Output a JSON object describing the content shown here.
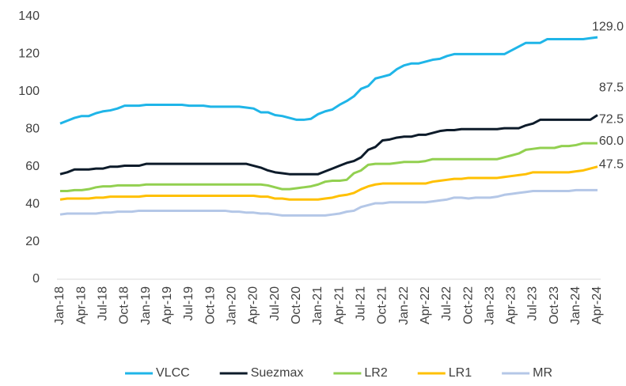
{
  "chart_data": {
    "type": "line",
    "categories": [
      "Jan-18",
      null,
      null,
      "Apr-18",
      null,
      null,
      "Jul-18",
      null,
      null,
      "Oct-18",
      null,
      null,
      "Jan-19",
      null,
      null,
      "Apr-19",
      null,
      null,
      "Jul-19",
      null,
      null,
      "Oct-19",
      null,
      null,
      "Jan-20",
      null,
      null,
      "Apr-20",
      null,
      null,
      "Jul-20",
      null,
      null,
      "Oct-20",
      null,
      null,
      "Jan-21",
      null,
      null,
      "Apr-21",
      null,
      null,
      "Jul-21",
      null,
      null,
      "Oct-21",
      null,
      null,
      "Jan-22",
      null,
      null,
      "Apr-22",
      null,
      null,
      "Jul-22",
      null,
      null,
      "Oct-22",
      null,
      null,
      "Jan-23",
      null,
      null,
      "Apr-23",
      null,
      null,
      "Jul-23",
      null,
      null,
      "Oct-23",
      null,
      null,
      "Jan-24",
      null,
      null,
      "Apr-24"
    ],
    "series": [
      {
        "name": "VLCC",
        "color": "#1fb5e8",
        "values": [
          83,
          84.5,
          86,
          87,
          87,
          88.5,
          89.5,
          90,
          91,
          92.5,
          92.5,
          92.5,
          93,
          93,
          93,
          93,
          93,
          93,
          92.5,
          92.5,
          92.5,
          92,
          92,
          92,
          92,
          92,
          91.5,
          91,
          89,
          89,
          87.5,
          87,
          86,
          85,
          85,
          85.5,
          88,
          89.5,
          90.5,
          93,
          95,
          97.5,
          101.5,
          103,
          107,
          108,
          109,
          112,
          114,
          115,
          115,
          116,
          117,
          117.5,
          119,
          120,
          120,
          120,
          120,
          120,
          120,
          120,
          120,
          122,
          124,
          126,
          126,
          126,
          128,
          128,
          128,
          128,
          128,
          128,
          128.5,
          129
        ],
        "value_labels": [
          null,
          null,
          null,
          null,
          null,
          null,
          null,
          null,
          null,
          null,
          null,
          null,
          null,
          null,
          null,
          null,
          null,
          null,
          null,
          null,
          null,
          null,
          null,
          null,
          null,
          null,
          null,
          null,
          null,
          null,
          null,
          null,
          null,
          null,
          null,
          null,
          null,
          null,
          null,
          null,
          null,
          null,
          null,
          null,
          null,
          null,
          null,
          null,
          null,
          null,
          null,
          null,
          null,
          null,
          null,
          null,
          null,
          null,
          null,
          null,
          null,
          null,
          null,
          null,
          null,
          null,
          null,
          null,
          null,
          null,
          null,
          null,
          null,
          null,
          null,
          "129.0"
        ]
      },
      {
        "name": "Suezmax",
        "color": "#0d1b2a",
        "values": [
          56,
          57,
          58.5,
          58.5,
          58.5,
          59,
          59,
          60,
          60,
          60.5,
          60.5,
          60.5,
          61.5,
          61.5,
          61.5,
          61.5,
          61.5,
          61.5,
          61.5,
          61.5,
          61.5,
          61.5,
          61.5,
          61.5,
          61.5,
          61.5,
          61.5,
          60.5,
          59.5,
          58,
          57,
          56.5,
          56,
          56,
          56,
          56,
          56,
          57.5,
          59,
          60.5,
          62,
          63,
          65,
          69,
          70.5,
          74,
          74.5,
          75.5,
          76,
          76,
          77,
          77,
          78,
          79,
          79.5,
          79.5,
          80,
          80,
          80,
          80,
          80,
          80,
          80.5,
          80.5,
          80.5,
          82,
          83,
          85,
          85,
          85,
          85,
          85,
          85,
          85,
          85,
          87.5
        ],
        "value_labels": [
          null,
          null,
          null,
          null,
          null,
          null,
          null,
          null,
          null,
          null,
          null,
          null,
          null,
          null,
          null,
          null,
          null,
          null,
          null,
          null,
          null,
          null,
          null,
          null,
          null,
          null,
          null,
          null,
          null,
          null,
          null,
          null,
          null,
          null,
          null,
          null,
          null,
          null,
          null,
          null,
          null,
          null,
          null,
          null,
          null,
          null,
          null,
          null,
          null,
          null,
          null,
          null,
          null,
          null,
          null,
          null,
          null,
          null,
          null,
          null,
          null,
          null,
          null,
          null,
          null,
          null,
          null,
          null,
          null,
          null,
          null,
          null,
          null,
          null,
          null,
          "87.5"
        ]
      },
      {
        "name": "LR2",
        "color": "#92d050",
        "values": [
          47,
          47,
          47.5,
          47.5,
          48,
          49,
          49.5,
          49.5,
          50,
          50,
          50,
          50,
          50.5,
          50.5,
          50.5,
          50.5,
          50.5,
          50.5,
          50.5,
          50.5,
          50.5,
          50.5,
          50.5,
          50.5,
          50.5,
          50.5,
          50.5,
          50.5,
          50.5,
          50,
          49,
          48,
          48,
          48.5,
          49,
          49.5,
          50.5,
          52,
          52.5,
          52.5,
          53,
          56.5,
          58,
          61,
          61.5,
          61.5,
          61.5,
          62,
          62.5,
          62.5,
          62.5,
          63,
          64,
          64,
          64,
          64,
          64,
          64,
          64,
          64,
          64,
          64,
          65,
          66,
          67,
          69,
          69.5,
          70,
          70,
          70,
          71,
          71,
          71.5,
          72.5,
          72.5,
          72.5
        ],
        "value_labels": [
          null,
          null,
          null,
          null,
          null,
          null,
          null,
          null,
          null,
          null,
          null,
          null,
          null,
          null,
          null,
          null,
          null,
          null,
          null,
          null,
          null,
          null,
          null,
          null,
          null,
          null,
          null,
          null,
          null,
          null,
          null,
          null,
          null,
          null,
          null,
          null,
          null,
          null,
          null,
          null,
          null,
          null,
          null,
          null,
          null,
          null,
          null,
          null,
          null,
          null,
          null,
          null,
          null,
          null,
          null,
          null,
          null,
          null,
          null,
          null,
          null,
          null,
          null,
          null,
          null,
          null,
          null,
          null,
          null,
          null,
          null,
          null,
          null,
          null,
          null,
          "72.5"
        ]
      },
      {
        "name": "LR1",
        "color": "#ffc000",
        "values": [
          42.5,
          43,
          43,
          43,
          43,
          43.5,
          43.5,
          44,
          44,
          44,
          44,
          44,
          44.5,
          44.5,
          44.5,
          44.5,
          44.5,
          44.5,
          44.5,
          44.5,
          44.5,
          44.5,
          44.5,
          44.5,
          44.5,
          44.5,
          44.5,
          44.5,
          44,
          44,
          43,
          43,
          42.5,
          42.5,
          42.5,
          42.5,
          42.5,
          43,
          43.5,
          44.5,
          45,
          46,
          48,
          49.5,
          50.5,
          51,
          51,
          51,
          51,
          51,
          51,
          51,
          52,
          52.5,
          53,
          53.5,
          53.5,
          54,
          54,
          54,
          54,
          54,
          54.5,
          55,
          55.5,
          56,
          57,
          57,
          57,
          57,
          57,
          57,
          57.5,
          58,
          59,
          60
        ],
        "value_labels": [
          null,
          null,
          null,
          null,
          null,
          null,
          null,
          null,
          null,
          null,
          null,
          null,
          null,
          null,
          null,
          null,
          null,
          null,
          null,
          null,
          null,
          null,
          null,
          null,
          null,
          null,
          null,
          null,
          null,
          null,
          null,
          null,
          null,
          null,
          null,
          null,
          null,
          null,
          null,
          null,
          null,
          null,
          null,
          null,
          null,
          null,
          null,
          null,
          null,
          null,
          null,
          null,
          null,
          null,
          null,
          null,
          null,
          null,
          null,
          null,
          null,
          null,
          null,
          null,
          null,
          null,
          null,
          null,
          null,
          null,
          null,
          null,
          null,
          null,
          null,
          "60.0"
        ]
      },
      {
        "name": "MR",
        "color": "#b4c7e7",
        "values": [
          34.5,
          35,
          35,
          35,
          35,
          35,
          35.5,
          35.5,
          36,
          36,
          36,
          36.5,
          36.5,
          36.5,
          36.5,
          36.5,
          36.5,
          36.5,
          36.5,
          36.5,
          36.5,
          36.5,
          36.5,
          36.5,
          36,
          36,
          35.5,
          35.5,
          35,
          35,
          34.5,
          34,
          34,
          34,
          34,
          34,
          34,
          34,
          34.5,
          35,
          36,
          36.5,
          38.5,
          39.5,
          40.5,
          40.5,
          41,
          41,
          41,
          41,
          41,
          41,
          41.5,
          42,
          42.5,
          43.5,
          43.5,
          43,
          43.5,
          43.5,
          43.5,
          44,
          45,
          45.5,
          46,
          46.5,
          47,
          47,
          47,
          47,
          47,
          47,
          47.5,
          47.5,
          47.5,
          47.5
        ],
        "value_labels": [
          null,
          null,
          null,
          null,
          null,
          null,
          null,
          null,
          null,
          null,
          null,
          null,
          null,
          null,
          null,
          null,
          null,
          null,
          null,
          null,
          null,
          null,
          null,
          null,
          null,
          null,
          null,
          null,
          null,
          null,
          null,
          null,
          null,
          null,
          null,
          null,
          null,
          null,
          null,
          null,
          null,
          null,
          null,
          null,
          null,
          null,
          null,
          null,
          null,
          null,
          null,
          null,
          null,
          null,
          null,
          null,
          null,
          null,
          null,
          null,
          null,
          null,
          null,
          null,
          null,
          null,
          null,
          null,
          null,
          null,
          null,
          null,
          null,
          null,
          null,
          "47.5"
        ]
      }
    ],
    "ylim": [
      0,
      140
    ],
    "yticks": [
      0,
      20,
      40,
      60,
      80,
      100,
      120,
      140
    ],
    "grid": false,
    "legend": "bottom"
  }
}
